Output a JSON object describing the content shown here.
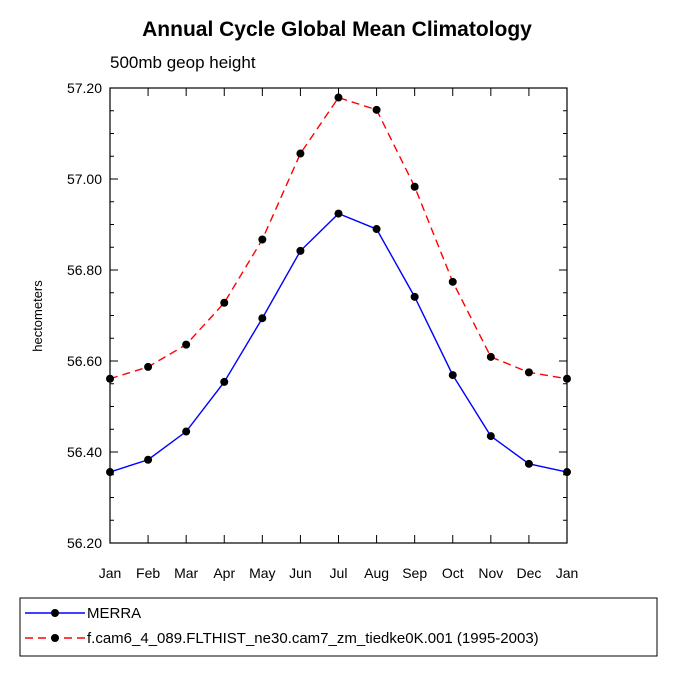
{
  "chart_data": {
    "type": "line",
    "title": "Annual Cycle Global Mean Climatology",
    "subtitle": "500mb geop height",
    "xlabel": "",
    "ylabel": "hectometers",
    "categories": [
      "Jan",
      "Feb",
      "Mar",
      "Apr",
      "May",
      "Jun",
      "Jul",
      "Aug",
      "Sep",
      "Oct",
      "Nov",
      "Dec",
      "Jan"
    ],
    "ylim": [
      56.2,
      57.2
    ],
    "yticks": [
      56.2,
      56.4,
      56.6,
      56.8,
      57.0,
      57.2
    ],
    "ytick_labels": [
      "56.20",
      "56.40",
      "56.60",
      "56.80",
      "57.00",
      "57.20"
    ],
    "grid": false,
    "legend_position": "bottom",
    "series": [
      {
        "name": "MERRA",
        "color": "#0000ff",
        "line_style": "solid",
        "marker": "filled-circle",
        "values": [
          56.356,
          56.383,
          56.445,
          56.554,
          56.694,
          56.842,
          56.924,
          56.89,
          56.741,
          56.569,
          56.435,
          56.374,
          56.356
        ]
      },
      {
        "name": "f.cam6_4_089.FLTHIST_ne30.cam7_zm_tiedke0K.001 (1995-2003)",
        "color": "#ff0000",
        "line_style": "dashed",
        "marker": "filled-circle",
        "values": [
          56.561,
          56.587,
          56.636,
          56.728,
          56.867,
          57.056,
          57.179,
          57.152,
          56.983,
          56.774,
          56.609,
          56.575,
          56.561
        ]
      }
    ]
  }
}
